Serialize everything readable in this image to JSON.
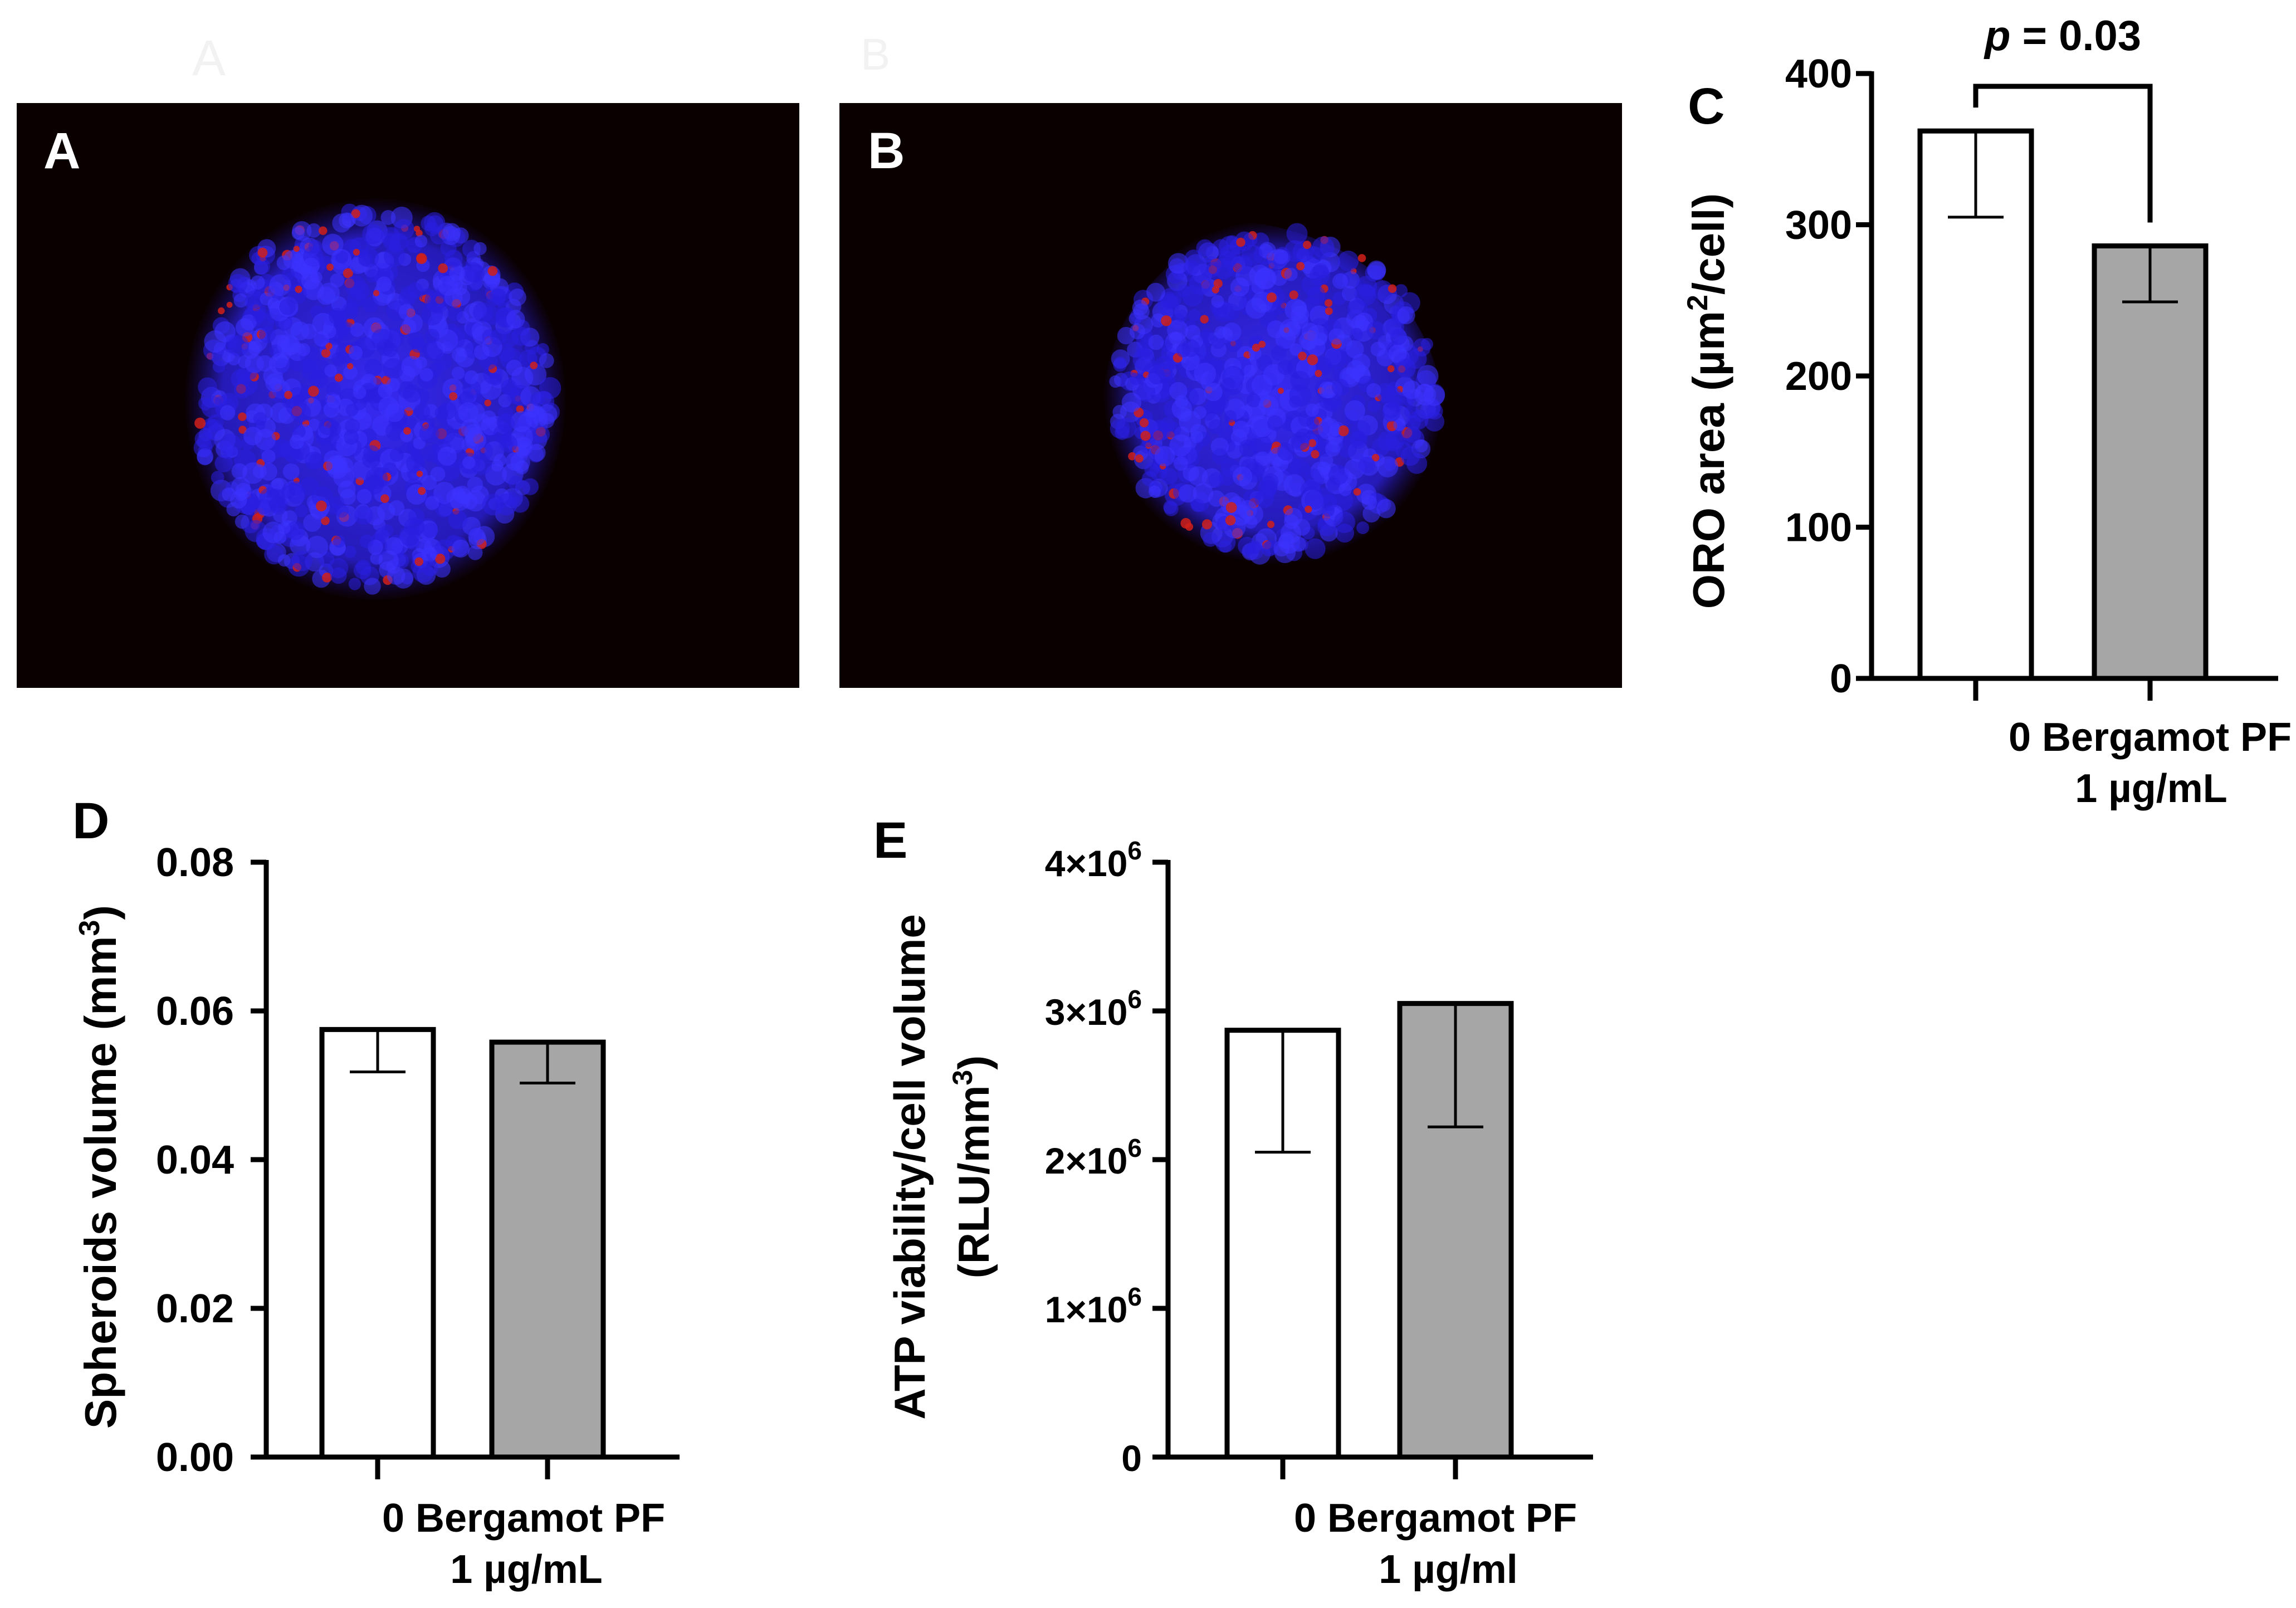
{
  "ghost_labels": {
    "a": "A",
    "b": "B"
  },
  "panels": {
    "A": {
      "label": "A",
      "kind": "micrograph-untreated"
    },
    "B": {
      "label": "B",
      "kind": "micrograph-treated"
    }
  },
  "colors": {
    "nuclei_stain": "#2a1fe0",
    "lipid_stain": "#d0201a",
    "micrograph_background": "#0a0000",
    "control_bar": "#ffffff",
    "treated_bar": "#a6a6a6",
    "axis": "#000000"
  },
  "chart_data": [
    {
      "id": "C",
      "panel_label": "C",
      "type": "bar",
      "categories": [
        "0",
        "Bergamot PF\n1 µg/mL"
      ],
      "category_lines": [
        [
          "0 Bergamot PF"
        ],
        [
          "1 µg/mL"
        ]
      ],
      "values": [
        362,
        286
      ],
      "error_low": [
        305,
        249
      ],
      "ylabel": "ORO area (µm²/cell)",
      "ylabel_parts": [
        "ORO area (µm",
        "2",
        "/cell)"
      ],
      "ylim": [
        0,
        400
      ],
      "yticks": [
        "0",
        "100",
        "200",
        "300",
        "400"
      ],
      "ytick_values": [
        0,
        100,
        200,
        300,
        400
      ],
      "annotation": {
        "prefix": "p",
        "text": " = 0.03",
        "between": [
          0,
          1
        ]
      },
      "bar_colors": [
        "#ffffff",
        "#a6a6a6"
      ]
    },
    {
      "id": "D",
      "panel_label": "D",
      "type": "bar",
      "categories": [
        "0",
        "Bergamot PF\n1 µg/mL"
      ],
      "category_lines": [
        [
          "0 Bergamot PF"
        ],
        [
          "1 µg/mL"
        ]
      ],
      "values": [
        0.0575,
        0.0558
      ],
      "error_low": [
        0.0518,
        0.0503
      ],
      "ylabel": "Spheroids volume (mm³)",
      "ylabel_parts": [
        "Spheroids volume (mm",
        "3",
        ")"
      ],
      "ylim": [
        0,
        0.08
      ],
      "yticks": [
        "0.00",
        "0.02",
        "0.04",
        "0.06",
        "0.08"
      ],
      "ytick_values": [
        0,
        0.02,
        0.04,
        0.06,
        0.08
      ],
      "bar_colors": [
        "#ffffff",
        "#a6a6a6"
      ]
    },
    {
      "id": "E",
      "panel_label": "E",
      "type": "bar",
      "categories": [
        "0",
        "Bergamot PF\n1 µg/ml"
      ],
      "category_lines": [
        [
          "0 Bergamot PF"
        ],
        [
          "1 µg/ml"
        ]
      ],
      "values": [
        2870000,
        3050000
      ],
      "error_low": [
        2050000,
        2220000
      ],
      "ylabel": "ATP viability/cell volume (RLU/mm³)",
      "ylabel_line1": "ATP viability/cell volume",
      "ylabel_line2_parts": [
        "(RLU/mm",
        "3",
        ")"
      ],
      "ylim": [
        0,
        4000000
      ],
      "yticks": [
        {
          "base": "0",
          "exp": ""
        },
        {
          "base": "1×10",
          "exp": "6"
        },
        {
          "base": "2×10",
          "exp": "6"
        },
        {
          "base": "3×10",
          "exp": "6"
        },
        {
          "base": "4×10",
          "exp": "6"
        }
      ],
      "ytick_values": [
        0,
        1000000,
        2000000,
        3000000,
        4000000
      ],
      "bar_colors": [
        "#ffffff",
        "#a6a6a6"
      ]
    }
  ]
}
